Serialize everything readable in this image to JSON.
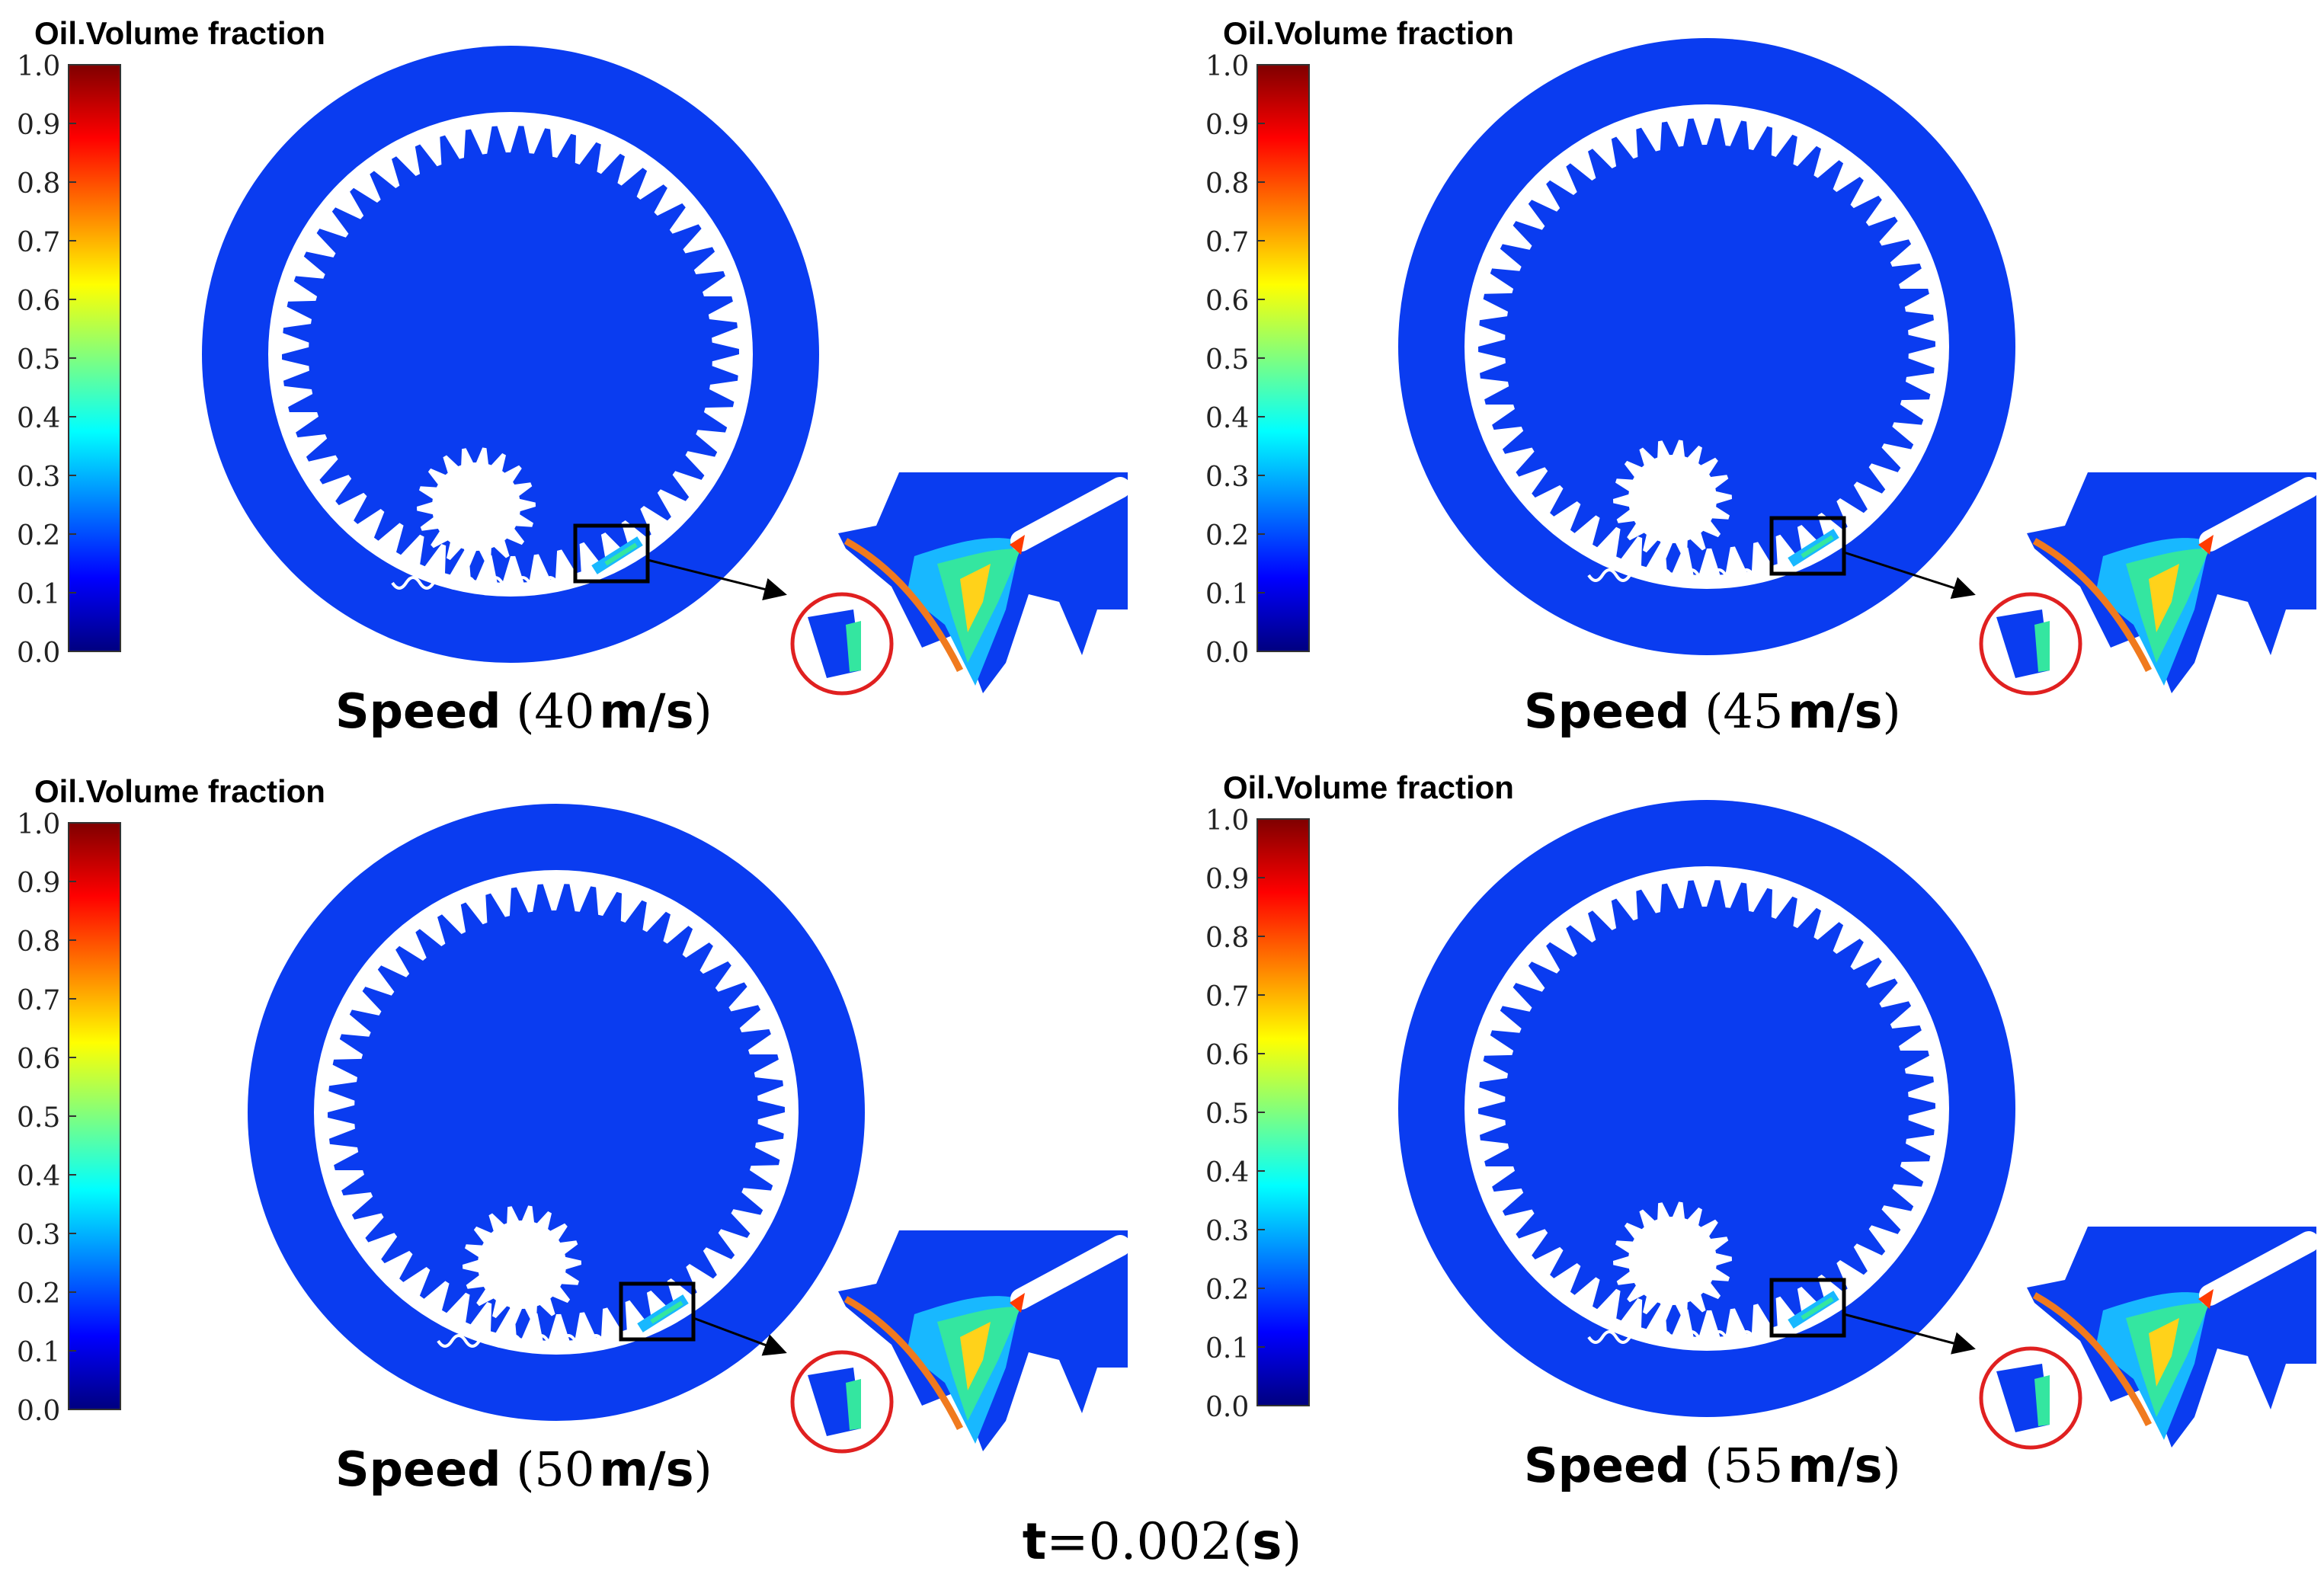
{
  "colorbar": {
    "title": "Oil.Volume fraction",
    "ticks": [
      "1.0",
      "0.9",
      "0.8",
      "0.7",
      "0.6",
      "0.5",
      "0.4",
      "0.3",
      "0.2",
      "0.1",
      "0.0"
    ],
    "stops": [
      "#00007f",
      "#0000ff",
      "#007fff",
      "#00ffff",
      "#7fff7f",
      "#ffff00",
      "#ff7f00",
      "#ff0000",
      "#7f0000"
    ]
  },
  "colors": {
    "oil_field": "#0a3cf0",
    "gear_gap": "#ffffff",
    "jet_hot": "#ff3b00",
    "jet_warm": "#ffd21a",
    "jet_mid": "#34e6a0",
    "jet_cool": "#18b8ff",
    "arc": "#f07a1e",
    "highlight_circle": "#e02020"
  },
  "panels": [
    {
      "speed_label": "Speed",
      "speed_value": "40",
      "speed_unit": "m/s"
    },
    {
      "speed_label": "Speed",
      "speed_value": "45",
      "speed_unit": "m/s"
    },
    {
      "speed_label": "Speed",
      "speed_value": "50",
      "speed_unit": "m/s"
    },
    {
      "speed_label": "Speed",
      "speed_value": "55",
      "speed_unit": "m/s"
    }
  ],
  "caption": {
    "symbol": "t",
    "equals": "=",
    "value": "0.002",
    "unit": "s"
  }
}
